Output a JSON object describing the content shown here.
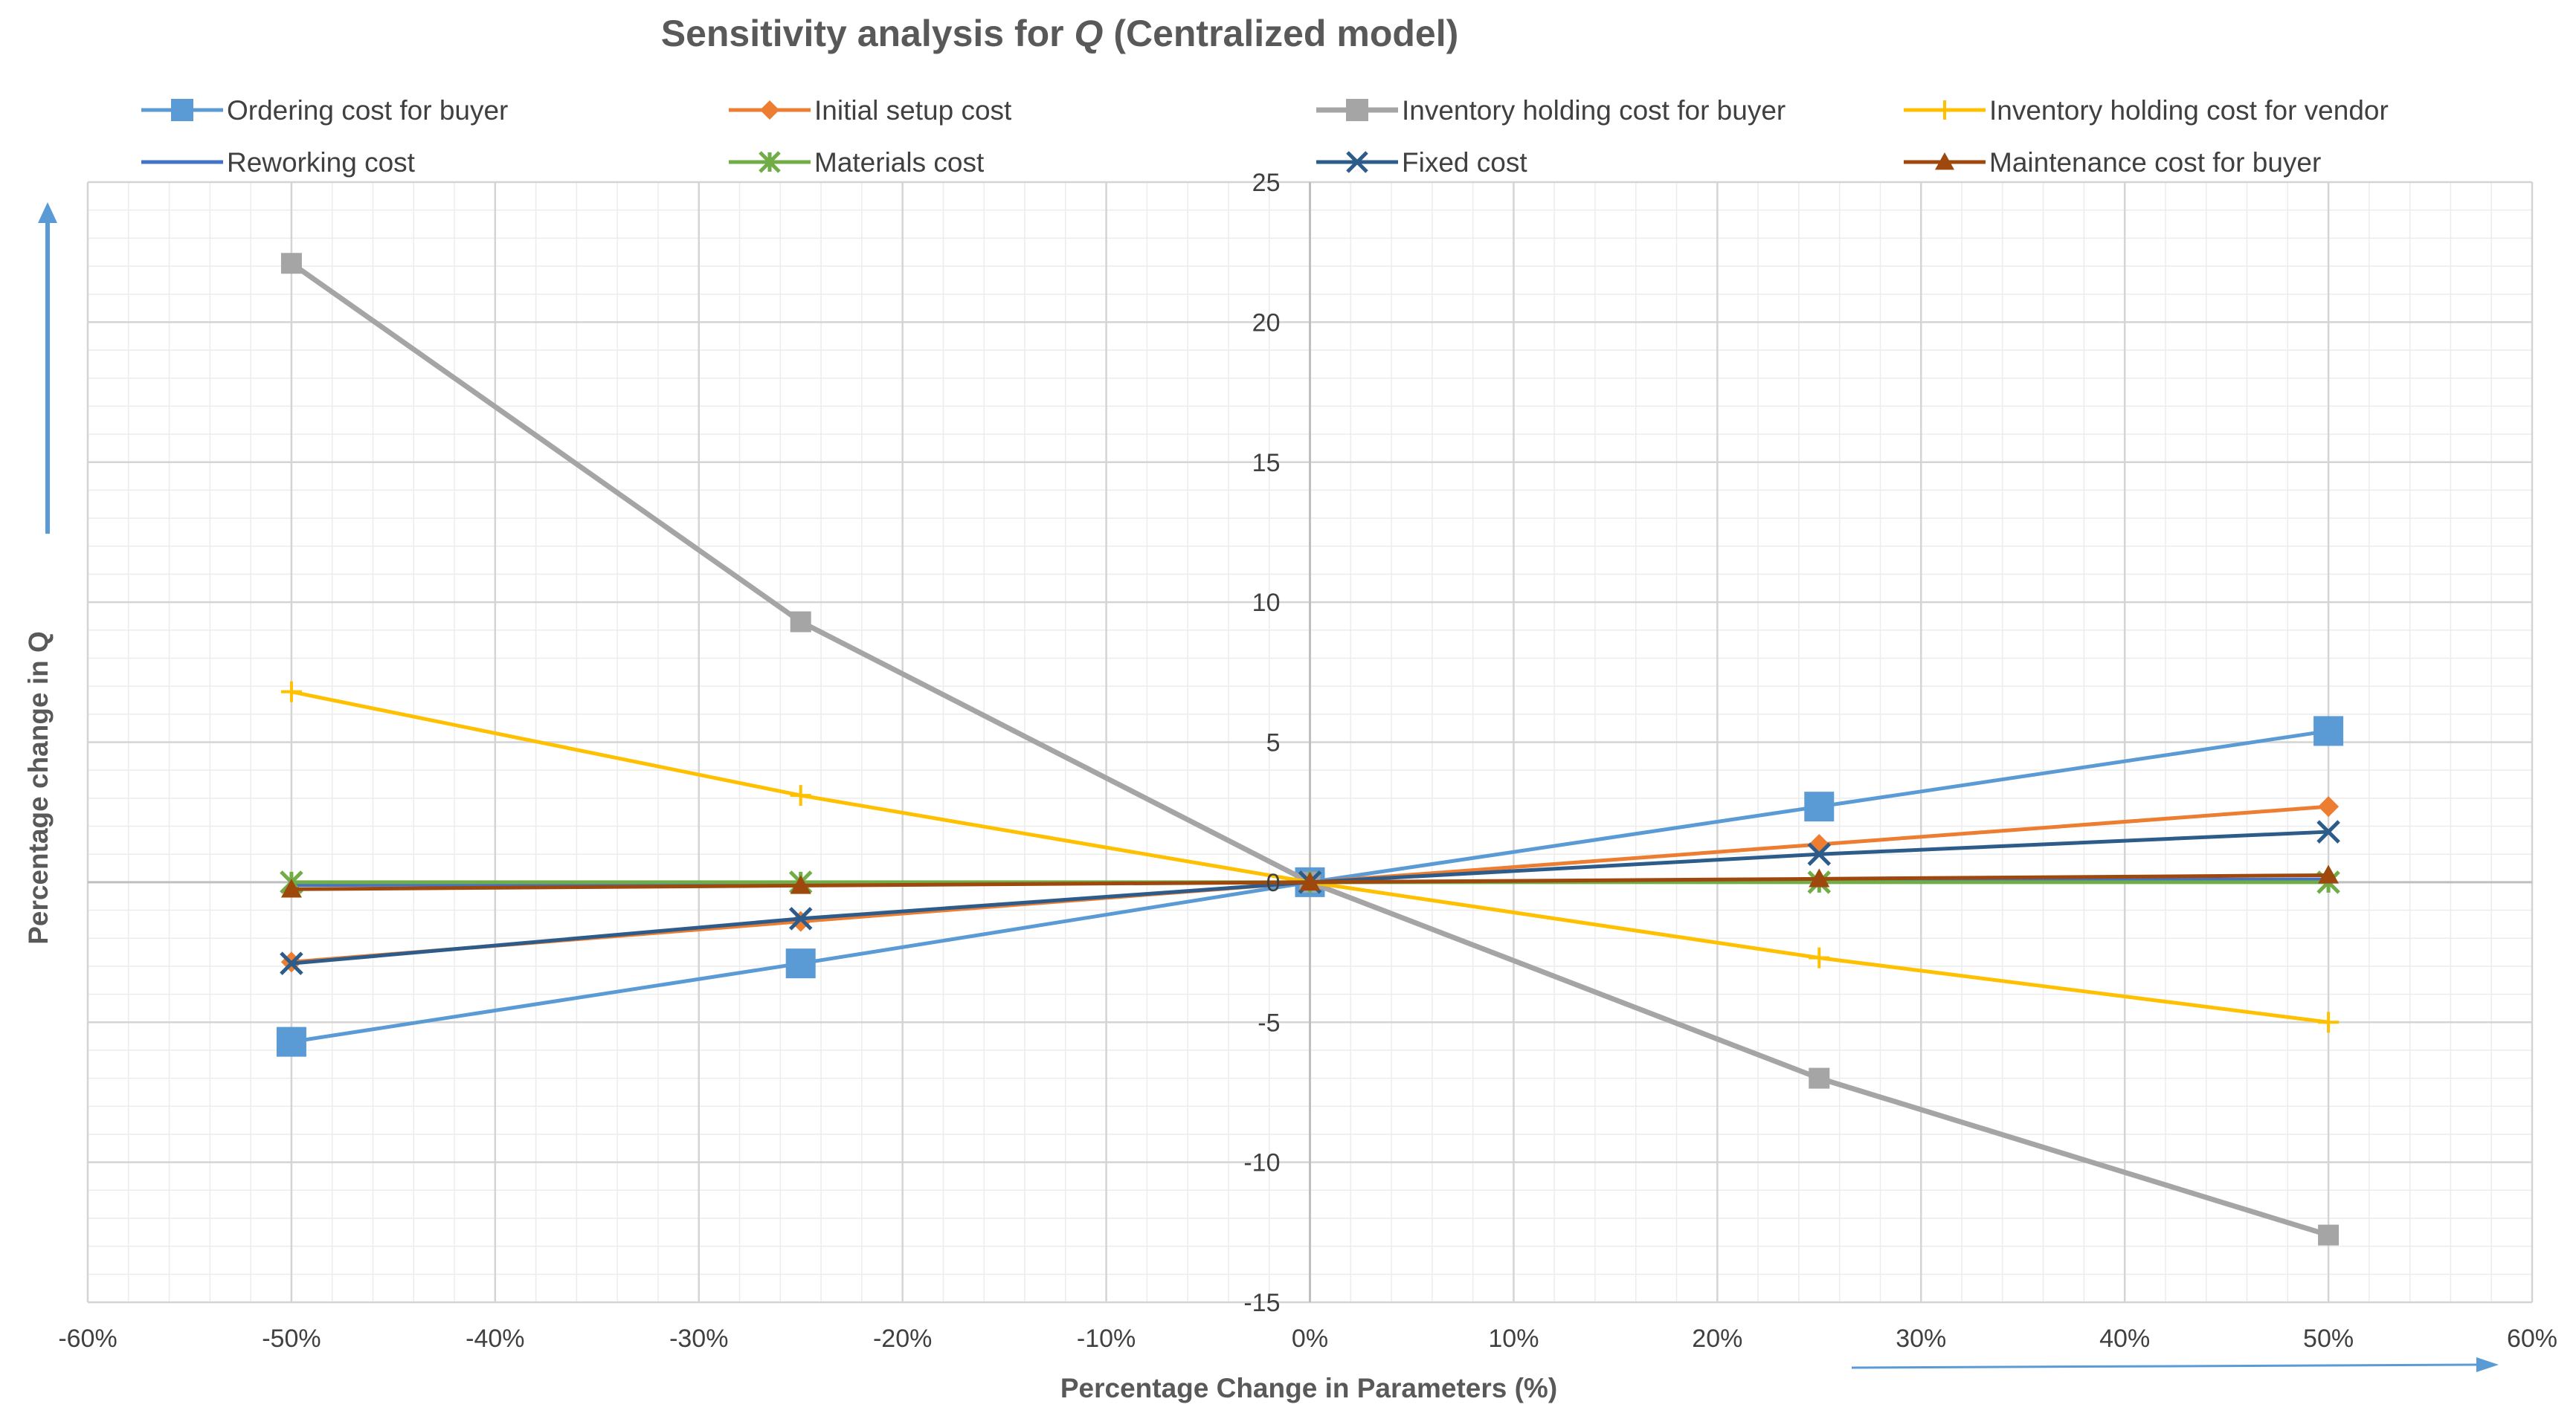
{
  "chart_data": {
    "type": "line",
    "title_prefix": "Sensitivity analysis for ",
    "title_var": "Q",
    "title_suffix": " (Centralized model)",
    "xlabel": "Percentage Change in Parameters (%)",
    "ylabel": "Percentage change in Q",
    "xlim": [
      -60,
      60
    ],
    "ylim": [
      -15,
      25
    ],
    "xticks": [
      -60,
      -50,
      -40,
      -30,
      -20,
      -10,
      0,
      10,
      20,
      30,
      40,
      50,
      60
    ],
    "xtick_labels": [
      "-60%",
      "-50%",
      "-40%",
      "-30%",
      "-20%",
      "-10%",
      "0%",
      "10%",
      "20%",
      "30%",
      "40%",
      "50%",
      "60%"
    ],
    "yticks": [
      -15,
      -10,
      -5,
      0,
      5,
      10,
      15,
      20,
      25
    ],
    "ytick_labels": [
      "-15",
      "-10",
      "-5",
      "0",
      "5",
      "10",
      "15",
      "20",
      "25"
    ],
    "grid": true,
    "legend_position": "top",
    "x": [
      -50,
      -25,
      0,
      25,
      50
    ],
    "series": [
      {
        "name": "Ordering cost for buyer",
        "color": "#5b9bd5",
        "marker": "square",
        "values": [
          -5.7,
          -2.9,
          0,
          2.7,
          5.4
        ]
      },
      {
        "name": "Initial setup cost",
        "color": "#ed7d31",
        "marker": "diamond",
        "values": [
          -2.85,
          -1.4,
          0,
          1.35,
          2.7
        ]
      },
      {
        "name": "Inventory holding cost for buyer",
        "color": "#a5a5a5",
        "marker": "square",
        "values": [
          22.1,
          9.3,
          0,
          -7.0,
          -12.6
        ]
      },
      {
        "name": "Inventory holding cost for vendor",
        "color": "#ffc000",
        "marker": "plus",
        "values": [
          6.8,
          3.1,
          0,
          -2.7,
          -5.0
        ]
      },
      {
        "name": "Reworking cost",
        "color": "#4472c4",
        "marker": "none",
        "values": [
          -0.1,
          -0.05,
          0,
          0.05,
          0.1
        ]
      },
      {
        "name": "Materials cost",
        "color": "#70ad47",
        "marker": "star",
        "values": [
          0.0,
          0.0,
          0,
          0.0,
          0.0
        ]
      },
      {
        "name": "Fixed cost",
        "color": "#2e5c8a",
        "marker": "x",
        "values": [
          -2.9,
          -1.3,
          0,
          1.0,
          1.8
        ]
      },
      {
        "name": "Maintenance cost for buyer",
        "color": "#9e480e",
        "marker": "triangle",
        "values": [
          -0.25,
          -0.12,
          0,
          0.12,
          0.25
        ]
      }
    ]
  }
}
